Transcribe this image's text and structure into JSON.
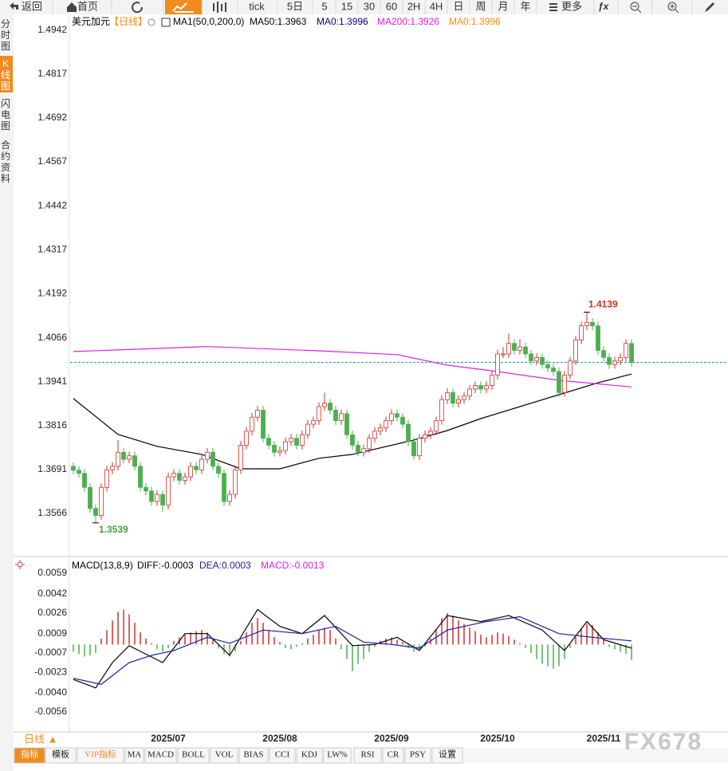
{
  "toolbar": {
    "items": [
      "返回",
      "首页",
      "tick",
      "5日",
      "5",
      "15",
      "30",
      "60",
      "2H",
      "4H",
      "日",
      "周",
      "月",
      "年",
      "更多"
    ]
  },
  "side_tabs": [
    "分时图",
    "K线图",
    "闪电图",
    "合约资料"
  ],
  "bottom_tabs": {
    "period": "日线 ▲",
    "items": [
      "指标",
      "模板",
      "VIP指标",
      "MA",
      "MACD",
      "BOLL",
      "VOL",
      "BIAS",
      "CCI",
      "KDJ",
      "LW%",
      "RSI",
      "CR",
      "PSY",
      "设置"
    ]
  },
  "watermark": "FX678",
  "chart_data": [
    {
      "type": "candlestick",
      "symbol": "美元加元",
      "period": "【日线】",
      "indicator": "MA1(50,0,200,0)",
      "up_color": "#d0312d",
      "down_color": "#4caf50",
      "ylim": [
        1.345,
        1.4978
      ],
      "yticks": [
        1.4942,
        1.4817,
        1.4692,
        1.4567,
        1.4442,
        1.4317,
        1.4192,
        1.4066,
        1.3941,
        1.3816,
        1.3691,
        1.3566
      ],
      "categories": [
        null,
        null,
        null,
        null,
        null,
        null,
        null,
        null,
        null,
        null,
        null,
        null,
        null,
        null,
        null,
        null,
        null,
        "2025/07",
        null,
        null,
        null,
        null,
        null,
        null,
        null,
        null,
        null,
        null,
        null,
        null,
        null,
        null,
        null,
        null,
        null,
        null,
        null,
        "2025/08",
        null,
        null,
        null,
        null,
        null,
        null,
        null,
        null,
        null,
        null,
        null,
        null,
        null,
        null,
        null,
        null,
        null,
        null,
        null,
        "2025/09",
        null,
        null,
        null,
        null,
        null,
        null,
        null,
        null,
        null,
        null,
        null,
        null,
        null,
        null,
        null,
        null,
        null,
        null,
        "2025/10",
        null,
        null,
        null,
        null,
        null,
        null,
        null,
        null,
        null,
        null,
        null,
        null,
        null,
        null,
        null,
        null,
        null,
        null,
        "2025/11",
        null,
        null,
        null,
        null,
        null,
        null,
        null
      ],
      "candles": [
        [
          1.37,
          1.3712,
          1.3677,
          1.3689
        ],
        [
          1.3689,
          1.3701,
          1.3668,
          1.368
        ],
        [
          1.368,
          1.3692,
          1.3628,
          1.364
        ],
        [
          1.364,
          1.3652,
          1.3568,
          1.358
        ],
        [
          1.358,
          1.3592,
          1.3539,
          1.356
        ],
        [
          1.356,
          1.3652,
          1.3548,
          1.364
        ],
        [
          1.364,
          1.3702,
          1.3628,
          1.369
        ],
        [
          1.369,
          1.3712,
          1.3678,
          1.37
        ],
        [
          1.37,
          1.3775,
          1.3688,
          1.374
        ],
        [
          1.374,
          1.3752,
          1.3708,
          1.372
        ],
        [
          1.372,
          1.3742,
          1.3708,
          1.373
        ],
        [
          1.373,
          1.3742,
          1.3688,
          1.37
        ],
        [
          1.37,
          1.3712,
          1.3628,
          1.364
        ],
        [
          1.364,
          1.3652,
          1.3618,
          1.363
        ],
        [
          1.363,
          1.3642,
          1.3588,
          1.36
        ],
        [
          1.36,
          1.3632,
          1.3588,
          1.362
        ],
        [
          1.362,
          1.3632,
          1.357,
          1.359
        ],
        [
          1.359,
          1.3682,
          1.3578,
          1.367
        ],
        [
          1.367,
          1.3692,
          1.3658,
          1.368
        ],
        [
          1.368,
          1.3692,
          1.3648,
          1.366
        ],
        [
          1.366,
          1.3682,
          1.3648,
          1.367
        ],
        [
          1.367,
          1.3712,
          1.3658,
          1.37
        ],
        [
          1.37,
          1.3712,
          1.3678,
          1.369
        ],
        [
          1.369,
          1.3732,
          1.3678,
          1.372
        ],
        [
          1.372,
          1.3752,
          1.3708,
          1.374
        ],
        [
          1.374,
          1.3752,
          1.3688,
          1.37
        ],
        [
          1.37,
          1.3712,
          1.3668,
          1.368
        ],
        [
          1.368,
          1.3692,
          1.3588,
          1.36
        ],
        [
          1.36,
          1.3632,
          1.3588,
          1.362
        ],
        [
          1.362,
          1.3702,
          1.3608,
          1.369
        ],
        [
          1.369,
          1.3772,
          1.3678,
          1.376
        ],
        [
          1.376,
          1.3812,
          1.3748,
          1.38
        ],
        [
          1.38,
          1.3852,
          1.3788,
          1.384
        ],
        [
          1.384,
          1.3872,
          1.3828,
          1.386
        ],
        [
          1.386,
          1.3872,
          1.3768,
          1.378
        ],
        [
          1.378,
          1.3792,
          1.3748,
          1.376
        ],
        [
          1.376,
          1.3772,
          1.3728,
          1.374
        ],
        [
          1.374,
          1.3757,
          1.3728,
          1.3745
        ],
        [
          1.3745,
          1.3782,
          1.3733,
          1.377
        ],
        [
          1.377,
          1.3792,
          1.3758,
          1.378
        ],
        [
          1.378,
          1.3792,
          1.3748,
          1.376
        ],
        [
          1.376,
          1.3802,
          1.3748,
          1.379
        ],
        [
          1.379,
          1.3832,
          1.3778,
          1.382
        ],
        [
          1.382,
          1.3842,
          1.3808,
          1.383
        ],
        [
          1.383,
          1.3882,
          1.3818,
          1.387
        ],
        [
          1.387,
          1.391,
          1.3858,
          1.388
        ],
        [
          1.388,
          1.3892,
          1.3848,
          1.386
        ],
        [
          1.386,
          1.3872,
          1.3818,
          1.383
        ],
        [
          1.383,
          1.3862,
          1.3818,
          1.385
        ],
        [
          1.385,
          1.3862,
          1.3778,
          1.379
        ],
        [
          1.379,
          1.3802,
          1.3748,
          1.376
        ],
        [
          1.376,
          1.3772,
          1.3728,
          1.374
        ],
        [
          1.374,
          1.3762,
          1.3728,
          1.375
        ],
        [
          1.375,
          1.3792,
          1.3738,
          1.378
        ],
        [
          1.378,
          1.3812,
          1.3768,
          1.38
        ],
        [
          1.38,
          1.3822,
          1.3788,
          1.381
        ],
        [
          1.381,
          1.3842,
          1.3798,
          1.383
        ],
        [
          1.383,
          1.3862,
          1.3818,
          1.385
        ],
        [
          1.385,
          1.3862,
          1.3828,
          1.384
        ],
        [
          1.384,
          1.3852,
          1.3808,
          1.382
        ],
        [
          1.382,
          1.3832,
          1.3758,
          1.377
        ],
        [
          1.377,
          1.3782,
          1.3718,
          1.373
        ],
        [
          1.373,
          1.3792,
          1.3718,
          1.378
        ],
        [
          1.378,
          1.3802,
          1.3768,
          1.379
        ],
        [
          1.379,
          1.3812,
          1.3778,
          1.38
        ],
        [
          1.38,
          1.3842,
          1.3788,
          1.383
        ],
        [
          1.383,
          1.3902,
          1.3818,
          1.389
        ],
        [
          1.389,
          1.3922,
          1.3878,
          1.391
        ],
        [
          1.391,
          1.3922,
          1.3868,
          1.388
        ],
        [
          1.388,
          1.3902,
          1.3868,
          1.389
        ],
        [
          1.389,
          1.3912,
          1.3878,
          1.39
        ],
        [
          1.39,
          1.3932,
          1.3888,
          1.392
        ],
        [
          1.392,
          1.3942,
          1.3908,
          1.393
        ],
        [
          1.393,
          1.3942,
          1.3908,
          1.392
        ],
        [
          1.392,
          1.3942,
          1.3908,
          1.393
        ],
        [
          1.393,
          1.3972,
          1.3918,
          1.396
        ],
        [
          1.396,
          1.4032,
          1.3948,
          1.402
        ],
        [
          1.402,
          1.404,
          1.4008,
          1.402
        ],
        [
          1.402,
          1.4078,
          1.4008,
          1.405
        ],
        [
          1.405,
          1.4062,
          1.4018,
          1.403
        ],
        [
          1.403,
          1.4062,
          1.4018,
          1.404
        ],
        [
          1.404,
          1.4052,
          1.4008,
          1.402
        ],
        [
          1.402,
          1.4032,
          1.3988,
          1.4
        ],
        [
          1.4,
          1.4022,
          1.3988,
          1.401
        ],
        [
          1.401,
          1.4022,
          1.3978,
          1.399
        ],
        [
          1.399,
          1.4002,
          1.3968,
          1.398
        ],
        [
          1.398,
          1.3992,
          1.3958,
          1.397
        ],
        [
          1.397,
          1.3982,
          1.3898,
          1.391
        ],
        [
          1.391,
          1.3972,
          1.3898,
          1.396
        ],
        [
          1.396,
          1.4012,
          1.3948,
          1.4
        ],
        [
          1.4,
          1.4072,
          1.3988,
          1.406
        ],
        [
          1.406,
          1.4112,
          1.4048,
          1.41
        ],
        [
          1.41,
          1.4139,
          1.4088,
          1.411
        ],
        [
          1.411,
          1.4122,
          1.4088,
          1.41
        ],
        [
          1.41,
          1.4112,
          1.4018,
          1.403
        ],
        [
          1.403,
          1.4042,
          1.3998,
          1.401
        ],
        [
          1.401,
          1.4022,
          1.3978,
          1.399
        ],
        [
          1.399,
          1.4012,
          1.3978,
          1.4
        ],
        [
          1.4,
          1.4022,
          1.3988,
          1.401
        ],
        [
          1.401,
          1.4062,
          1.3998,
          1.405
        ],
        [
          1.405,
          1.4062,
          1.3984,
          1.3996
        ]
      ],
      "series": [
        {
          "name": "MA50:1.3963",
          "color": "#000000",
          "x": [
            0,
            8,
            15,
            23,
            30,
            37,
            44,
            50,
            61,
            67,
            73,
            80,
            87,
            94,
            100
          ],
          "values": [
            1.3893,
            1.3791,
            1.3757,
            1.3734,
            1.3693,
            1.3693,
            1.3723,
            1.3734,
            1.3775,
            1.3802,
            1.3836,
            1.387,
            1.3904,
            1.3938,
            1.3963
          ]
        },
        {
          "name": "MA200:1.3926",
          "color": "#e020e0",
          "x": [
            0,
            24,
            44,
            58,
            67,
            75,
            87,
            100
          ],
          "values": [
            1.4027,
            1.4041,
            1.4029,
            1.4018,
            1.3988,
            1.3972,
            1.3945,
            1.3926
          ]
        }
      ],
      "legend_extra": [
        {
          "text": "MA0:1.3996",
          "color": "#00008b"
        },
        {
          "text": "MA0:1.3996",
          "color": "#ff8c00"
        }
      ],
      "last_price": 1.3996,
      "last_color": "#1a9a9a",
      "high_label": 1.4139,
      "high_color": "#d0312d",
      "low_label": 1.3539,
      "low_color": "#4a9a4a"
    },
    {
      "type": "macd",
      "title": "MACD(13,8,9)",
      "ylim": [
        -0.00705,
        0.00716
      ],
      "yticks": [
        0.0059,
        0.0042,
        0.0026,
        0.0009,
        -0.0007,
        -0.0023,
        {
          "value": -0.004,
          "label": "-0.0040"
        },
        -0.0056
      ],
      "series": [
        {
          "name": "DIFF:-0.0003",
          "color": "#000000",
          "x": [
            0,
            4,
            7,
            10,
            13,
            16,
            20,
            24,
            28,
            33,
            37,
            41,
            45,
            50,
            54,
            58,
            62,
            67,
            73,
            78,
            84,
            88,
            92,
            95,
            100
          ],
          "values": [
            -0.0029,
            -0.0036,
            -0.0015,
            -0.0001,
            -0.0008,
            -0.0015,
            0.0009,
            0.0009,
            -0.0009,
            0.0029,
            0.0015,
            0.0009,
            0.0024,
            -0.0001,
            0.0,
            0.0006,
            -0.0005,
            0.0024,
            0.0019,
            0.0024,
            0.0012,
            -0.0005,
            0.0019,
            0.0004,
            -0.0003
          ]
        },
        {
          "name": "DEA:0.0003",
          "color": "#1a1aa0",
          "x": [
            0,
            5,
            10,
            14,
            18,
            24,
            28,
            34,
            41,
            47,
            52,
            57,
            62,
            67,
            74,
            80,
            87,
            93,
            100
          ],
          "values": [
            -0.0028,
            -0.0033,
            -0.0015,
            -0.0009,
            -0.0005,
            0.0006,
            0.0001,
            0.0012,
            0.0009,
            0.0015,
            0.0002,
            0.0,
            -0.0003,
            0.0012,
            0.0019,
            0.0023,
            0.0009,
            0.0006,
            0.0003
          ]
        }
      ],
      "hist_name": "MACD:-0.0013",
      "hist_color": "#e020e0",
      "up_color": "#d0312d",
      "down_color": "#4caf50",
      "hist": [
        -0.0006,
        -0.0008,
        -0.001,
        -0.0009,
        -0.0007,
        0.0005,
        0.0012,
        0.002,
        0.0027,
        0.0029,
        0.0025,
        0.0018,
        0.001,
        0.0005,
        0.0001,
        -0.0004,
        -0.0006,
        -0.0003,
        0.0003,
        0.0006,
        0.0008,
        0.001,
        0.0011,
        0.0012,
        0.001,
        0.0005,
        -0.0003,
        -0.0008,
        -0.001,
        -0.0006,
        0.0003,
        0.001,
        0.0018,
        0.0022,
        0.0018,
        0.0012,
        0.0006,
        0.0002,
        -0.0003,
        -0.0004,
        -0.0002,
        0.0001,
        0.0005,
        0.0008,
        0.0012,
        0.0014,
        0.0012,
        0.0005,
        -0.0004,
        -0.0012,
        -0.0022,
        -0.0016,
        -0.0012,
        -0.0006,
        -0.0002,
        0.0003,
        0.0005,
        0.0006,
        0.0004,
        0.0002,
        -0.0003,
        -0.0006,
        -0.0004,
        -0.0002,
        0.0005,
        0.0012,
        0.0022,
        0.0026,
        0.0024,
        0.002,
        0.0017,
        0.0014,
        0.0011,
        0.0008,
        0.0006,
        0.0008,
        0.001,
        0.0009,
        0.0007,
        0.0004,
        0.0001,
        -0.0003,
        -0.0007,
        -0.0012,
        -0.0016,
        -0.0018,
        -0.002,
        -0.0018,
        -0.0012,
        -0.0003,
        0.0006,
        0.0013,
        0.0017,
        0.0016,
        0.001,
        0.0004,
        -0.0002,
        -0.0004,
        -0.0006,
        -0.0008,
        -0.0013
      ]
    }
  ]
}
